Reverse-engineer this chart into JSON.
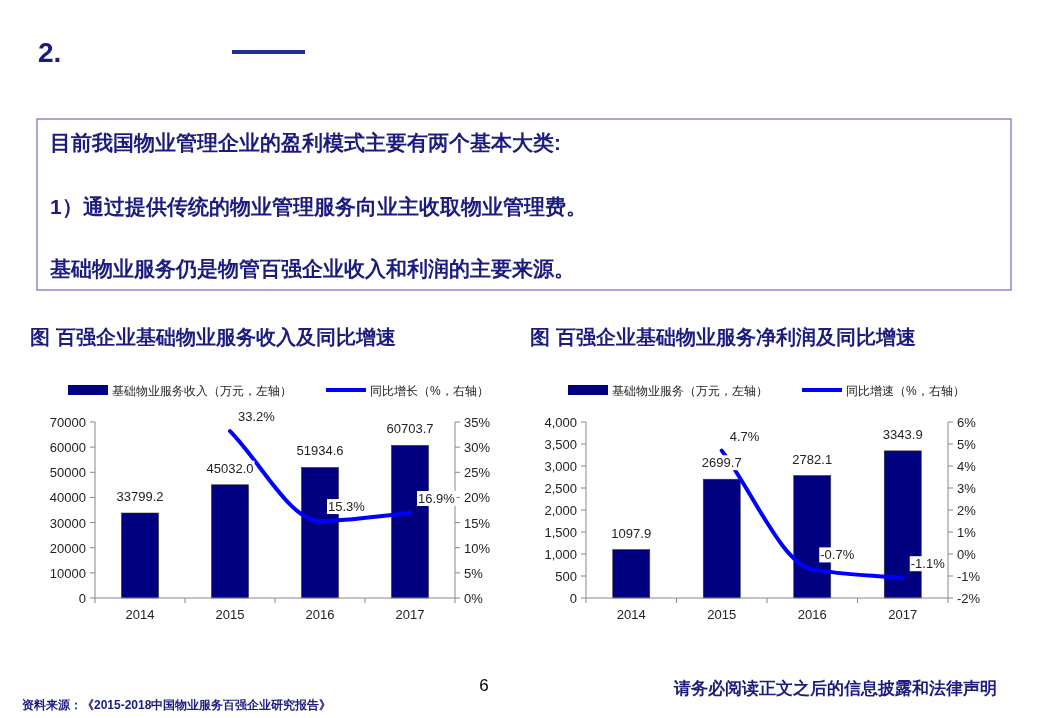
{
  "chart_data": [
    {
      "type": "other",
      "title": "2.",
      "annotations": [
        "目前我国物业管理企业的盈利模式主要有两个基本大类:",
        "1）通过提供传统的物业管理服务向业主收取物业管理费。",
        "基础物业服务仍是物管百强企业收入和利润的主要来源。",
        "6",
        "资料来源：《2015-2018中国物业服务百强企业研究报告》",
        "请务必阅读正文之后的信息披露和法律声明"
      ]
    },
    {
      "type": "bar",
      "title": "图  百强企业基础物业服务收入及同比增速",
      "categories": [
        "2014",
        "2015",
        "2016",
        "2017"
      ],
      "legend": "top",
      "grid": false,
      "series": [
        {
          "name": "基础物业服务收入（万元，左轴）",
          "color": "#000080",
          "values": [
            33799.2,
            45032.0,
            51934.6,
            60703.7
          ],
          "value_labels": [
            "33799.2",
            "45032.0",
            "51934.6",
            "60703.7"
          ]
        },
        {
          "name": "同比增长（%，右轴）",
          "type": "line",
          "axis": "y2",
          "color": "#0000ff",
          "values": [
            null,
            33.2,
            15.3,
            16.9
          ],
          "value_labels": [
            null,
            "33.2%",
            "15.3%",
            "16.9%"
          ]
        }
      ],
      "ylim": [
        0,
        70000
      ],
      "yticks": [
        0,
        10000,
        20000,
        30000,
        40000,
        50000,
        60000,
        70000
      ],
      "y2lim": [
        0,
        35
      ],
      "y2ticks": [
        {
          "value": 0,
          "label": "0%"
        },
        {
          "value": 5,
          "label": "5%"
        },
        {
          "value": 10,
          "label": "10%"
        },
        {
          "value": 15,
          "label": "15%"
        },
        {
          "value": 20,
          "label": "20%"
        },
        {
          "value": 25,
          "label": "25%"
        },
        {
          "value": 30,
          "label": "30%"
        },
        {
          "value": 35,
          "label": "35%"
        }
      ]
    },
    {
      "type": "bar",
      "title": "图  百强企业基础物业服务净利润及同比增速",
      "categories": [
        "2014",
        "2015",
        "2016",
        "2017"
      ],
      "legend": "top",
      "grid": false,
      "series": [
        {
          "name": "基础物业服务（万元，左轴）",
          "color": "#000080",
          "values": [
            1097.9,
            2699.7,
            2782.1,
            3343.9
          ],
          "value_labels": [
            "1097.9",
            "2699.7",
            "2782.1",
            "3343.9"
          ]
        },
        {
          "name": "同比增速（%，右轴）",
          "type": "line",
          "axis": "y2",
          "color": "#0000ff",
          "values": [
            null,
            4.7,
            -0.7,
            -1.1
          ],
          "value_labels": [
            null,
            "4.7%",
            "-0.7%",
            "-1.1%"
          ]
        }
      ],
      "ylim": [
        0,
        4000
      ],
      "yticks": [
        0,
        {
          "value": 500,
          "label": "500"
        },
        {
          "value": 1000,
          "label": "1,000"
        },
        {
          "value": 1500,
          "label": "1,500"
        },
        {
          "value": 2000,
          "label": "2,000"
        },
        {
          "value": 2500,
          "label": "2,500"
        },
        {
          "value": 3000,
          "label": "3,000"
        },
        {
          "value": 3500,
          "label": "3,500"
        },
        {
          "value": 4000,
          "label": "4,000"
        }
      ],
      "y2lim": [
        -2,
        6
      ],
      "y2ticks": [
        {
          "value": -2,
          "label": "-2%"
        },
        {
          "value": -1,
          "label": "-1%"
        },
        {
          "value": 0,
          "label": "0%"
        },
        {
          "value": 1,
          "label": "1%"
        },
        {
          "value": 2,
          "label": "2%"
        },
        {
          "value": 3,
          "label": "3%"
        },
        {
          "value": 4,
          "label": "4%"
        },
        {
          "value": 5,
          "label": "5%"
        },
        {
          "value": 6,
          "label": "6%"
        }
      ]
    }
  ]
}
